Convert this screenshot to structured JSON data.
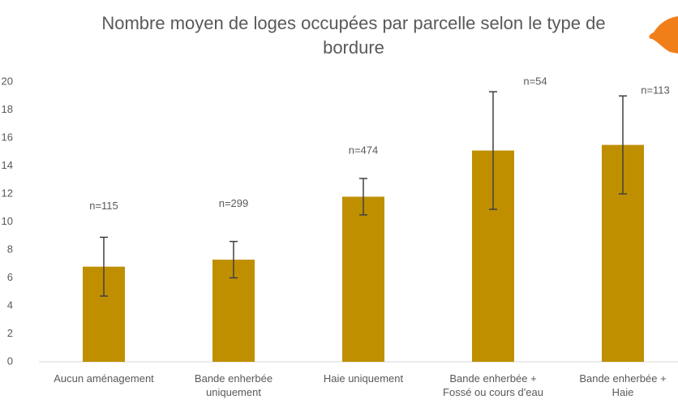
{
  "chart_data": {
    "type": "bar",
    "title": "Nombre moyen de loges occupées par parcelle selon le type de bordure",
    "categories": [
      "Aucun aménagement",
      "Bande enherbée\nuniquement",
      "Haie uniquement",
      "Bande enherbée +\nFossé ou cours d'eau",
      "Bande enherbée +\nHaie"
    ],
    "values": [
      6.8,
      7.3,
      11.8,
      15.1,
      15.5
    ],
    "errors": [
      2.1,
      1.3,
      1.3,
      4.2,
      3.5
    ],
    "annotations": [
      "n=115",
      "n=299",
      "n=474",
      "n=54",
      "n=113"
    ],
    "color": "#bf8f00",
    "ylim": [
      0,
      20
    ],
    "yticks": [
      0,
      2,
      4,
      6,
      8,
      10,
      12,
      14,
      16,
      18,
      20
    ],
    "grid": false
  }
}
